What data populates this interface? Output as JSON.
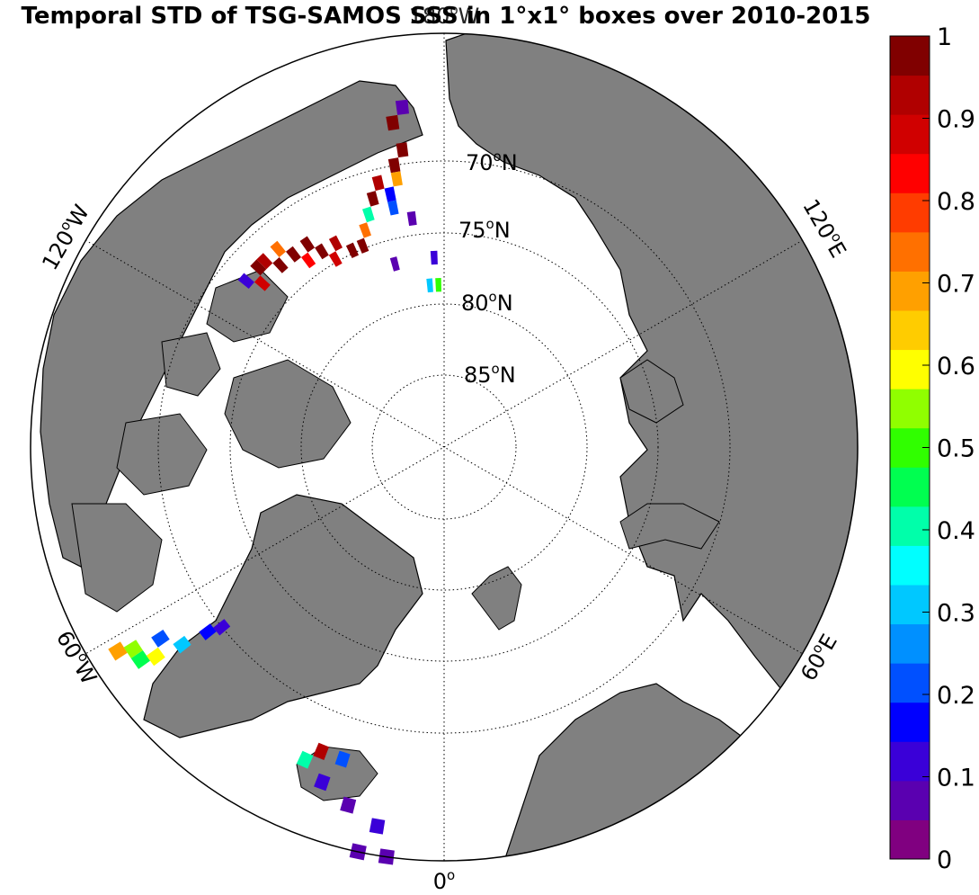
{
  "figure": {
    "title": "Temporal STD of TSG-SAMOS SSS in 1°x1° boxes over 2010-2015",
    "colors": {
      "land": "#808080",
      "ocean": "#ffffff",
      "grid": "#000000"
    }
  },
  "map": {
    "projection": "north-polar-stereographic",
    "lat_circles": [
      70,
      75,
      80,
      85
    ],
    "lat_labels": {
      "70": "70",
      "75": "75",
      "80": "80",
      "85": "85"
    },
    "lat_unit": "N",
    "degree_symbol": "o",
    "lon_labels": {
      "lon_180": {
        "value": "180",
        "hemi": "W"
      },
      "lon_120w": {
        "value": "120",
        "hemi": "W"
      },
      "lon_60w": {
        "value": "60",
        "hemi": "W"
      },
      "lon_0": {
        "value": "0",
        "hemi": ""
      },
      "lon_60e": {
        "value": "60",
        "hemi": "E"
      },
      "lon_120e": {
        "value": "120",
        "hemi": "E"
      }
    }
  },
  "colorbar": {
    "min": 0,
    "max": 1,
    "ticks": [
      0,
      0.1,
      0.2,
      0.3,
      0.4,
      0.5,
      0.6,
      0.7,
      0.8,
      0.9,
      1
    ],
    "tick_labels": [
      "0",
      "0.1",
      "0.2",
      "0.3",
      "0.4",
      "0.5",
      "0.6",
      "0.7",
      "0.8",
      "0.9",
      "1"
    ],
    "colors": [
      "#800080",
      "#5a00b0",
      "#3a00d8",
      "#0000ff",
      "#0050ff",
      "#0090ff",
      "#00c8ff",
      "#00ffff",
      "#00ffaa",
      "#00ff50",
      "#30ff00",
      "#90ff00",
      "#ffff00",
      "#ffcc00",
      "#ffa000",
      "#ff7000",
      "#ff3c00",
      "#ff0000",
      "#d00000",
      "#b00000",
      "#800000"
    ]
  },
  "chart_data": {
    "type": "heatmap",
    "variable": "STD",
    "value_range": [
      0,
      1
    ],
    "cells": [
      {
        "lon": -155,
        "lat": 74,
        "v": 1.0
      },
      {
        "lon": -152,
        "lat": 73,
        "v": 0.95
      },
      {
        "lon": -150,
        "lat": 74,
        "v": 0.9
      },
      {
        "lon": -148,
        "lat": 73,
        "v": 1.0
      },
      {
        "lon": -146,
        "lat": 72,
        "v": 1.0
      },
      {
        "lon": -144,
        "lat": 73,
        "v": 0.85
      },
      {
        "lon": -142,
        "lat": 72,
        "v": 1.0
      },
      {
        "lon": -140,
        "lat": 71,
        "v": 0.75
      },
      {
        "lon": -138,
        "lat": 72,
        "v": 1.0
      },
      {
        "lon": -136,
        "lat": 71,
        "v": 0.95
      },
      {
        "lon": -134,
        "lat": 71,
        "v": 1.0
      },
      {
        "lon": -132,
        "lat": 72,
        "v": 0.9
      },
      {
        "lon": -130,
        "lat": 71,
        "v": 0.1
      },
      {
        "lon": -160,
        "lat": 73,
        "v": 0.75
      },
      {
        "lon": -158,
        "lat": 74,
        "v": 1.0
      },
      {
        "lon": -162,
        "lat": 72,
        "v": 0.4
      },
      {
        "lon": -168,
        "lat": 71,
        "v": 0.15
      },
      {
        "lon": -166,
        "lat": 70,
        "v": 0.95
      },
      {
        "lon": -164,
        "lat": 71,
        "v": 1.0
      },
      {
        "lon": -170,
        "lat": 69,
        "v": 1.0
      },
      {
        "lon": -172,
        "lat": 68,
        "v": 1.0
      },
      {
        "lon": -171,
        "lat": 66,
        "v": 1.0
      },
      {
        "lon": -173,
        "lat": 65,
        "v": 0.05
      },
      {
        "lon": -170,
        "lat": 70,
        "v": 0.7
      },
      {
        "lon": -168,
        "lat": 72,
        "v": 0.2
      },
      {
        "lon": -172,
        "lat": 73,
        "v": 0.05
      },
      {
        "lon": -175,
        "lat": 78,
        "v": 0.3
      },
      {
        "lon": -178,
        "lat": 78,
        "v": 0.5
      },
      {
        "lon": -177,
        "lat": 76,
        "v": 0.1
      },
      {
        "lon": -165,
        "lat": 76,
        "v": 0.05
      },
      {
        "lon": -55,
        "lat": 63,
        "v": 0.45
      },
      {
        "lon": -54,
        "lat": 64,
        "v": 0.6
      },
      {
        "lon": -56,
        "lat": 65,
        "v": 0.2
      },
      {
        "lon": -53,
        "lat": 66,
        "v": 0.3
      },
      {
        "lon": -52,
        "lat": 68,
        "v": 0.15
      },
      {
        "lon": -51,
        "lat": 69,
        "v": 0.1
      },
      {
        "lon": -58,
        "lat": 62,
        "v": 0.7
      },
      {
        "lon": -57,
        "lat": 63,
        "v": 0.55
      },
      {
        "lon": -20,
        "lat": 64,
        "v": 0.1
      },
      {
        "lon": -18,
        "lat": 66,
        "v": 0.2
      },
      {
        "lon": -22,
        "lat": 66,
        "v": 0.95
      },
      {
        "lon": -15,
        "lat": 63,
        "v": 0.05
      },
      {
        "lon": -10,
        "lat": 62,
        "v": 0.1
      },
      {
        "lon": -8,
        "lat": 60,
        "v": 0.05
      },
      {
        "lon": -12,
        "lat": 60,
        "v": 0.08
      },
      {
        "lon": -24,
        "lat": 65,
        "v": 0.4
      }
    ]
  }
}
